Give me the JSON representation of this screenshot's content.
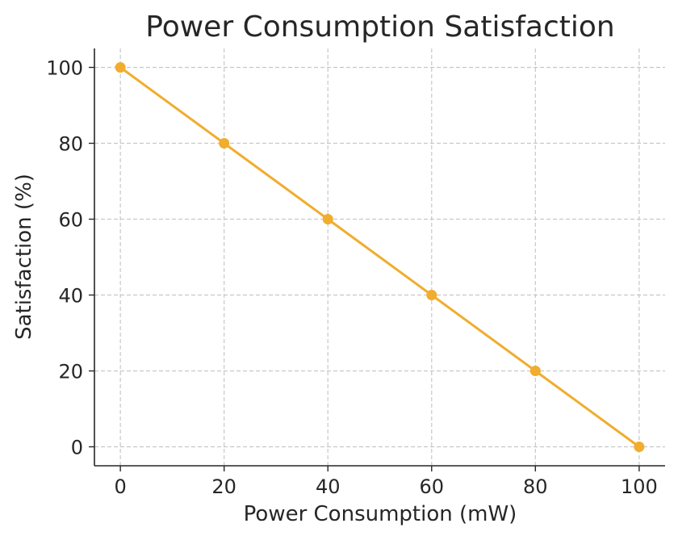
{
  "chart_data": {
    "type": "line",
    "title": "Power Consumption Satisfaction",
    "xlabel": "Power Consumption (mW)",
    "ylabel": "Satisfaction (%)",
    "x": [
      0,
      20,
      40,
      60,
      80,
      100
    ],
    "series": [
      {
        "values": [
          100,
          80,
          60,
          40,
          20,
          0
        ],
        "color": "#f0ad2e",
        "marker": "circle"
      }
    ],
    "xlim": [
      -5,
      105
    ],
    "ylim": [
      -5,
      105
    ],
    "xticks": [
      0,
      20,
      40,
      60,
      80,
      100
    ],
    "yticks": [
      0,
      20,
      40,
      60,
      80,
      100
    ],
    "grid": true,
    "grid_style": "dashed",
    "axes_spines": "left-bottom"
  }
}
